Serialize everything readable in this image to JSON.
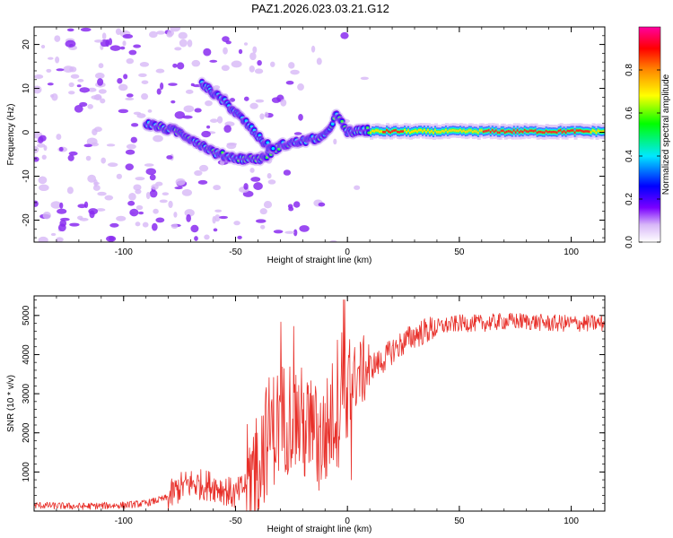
{
  "title": "PAZ1.2026.023.03.21.G12",
  "chart_data": [
    {
      "type": "heatmap",
      "xlabel": "Height of straight line (km)",
      "ylabel": "Frequency (Hz)",
      "xlim": [
        -140,
        115
      ],
      "ylim": [
        -25,
        24
      ],
      "xticks": [
        -100,
        -50,
        0,
        50,
        100
      ],
      "xtick_labels": [
        "-100",
        "-50",
        "0",
        "50",
        "100"
      ],
      "yticks": [
        -20,
        -10,
        0,
        10,
        20
      ],
      "ytick_labels": [
        "-20",
        "-10",
        "0",
        "10",
        "20"
      ],
      "colorbar": {
        "label": "Normalized spectral amplitude",
        "range": [
          0,
          1
        ],
        "ticks": [
          0.0,
          0.2,
          0.4,
          0.6,
          0.8
        ],
        "tick_labels": [
          "0.0",
          "0.2",
          "0.4",
          "0.6",
          "0.8"
        ],
        "colors": [
          "#ffffff",
          "#d8b8f8",
          "#7a00ff",
          "#0000ff",
          "#00e8ff",
          "#00ff00",
          "#ffff00",
          "#ff8800",
          "#ff0000",
          "#ff00a0"
        ]
      },
      "ridge": [
        {
          "x": -90,
          "y": 2
        },
        {
          "x": -75,
          "y": 0
        },
        {
          "x": -68,
          "y": -2
        },
        {
          "x": -58,
          "y": -5
        },
        {
          "x": -48,
          "y": -6
        },
        {
          "x": -38,
          "y": -6
        },
        {
          "x": -30,
          "y": -3
        },
        {
          "x": -20,
          "y": -2
        },
        {
          "x": -10,
          "y": -1
        },
        {
          "x": -5,
          "y": 4
        },
        {
          "x": 0,
          "y": 0
        },
        {
          "x": 10,
          "y": 0.5
        },
        {
          "x": 30,
          "y": 0
        },
        {
          "x": 60,
          "y": 0
        },
        {
          "x": 90,
          "y": 0
        },
        {
          "x": 115,
          "y": 0
        }
      ],
      "branch": [
        {
          "x": -65,
          "y": 11
        },
        {
          "x": -55,
          "y": 7
        },
        {
          "x": -45,
          "y": 2
        },
        {
          "x": -38,
          "y": -2
        },
        {
          "x": -33,
          "y": -4
        }
      ]
    },
    {
      "type": "line",
      "xlabel": "Height of straight line (km)",
      "ylabel": "SNR (10 * v/v)",
      "xlim": [
        -140,
        115
      ],
      "ylim": [
        0,
        5500
      ],
      "xticks": [
        -100,
        -50,
        0,
        50,
        100
      ],
      "xtick_labels": [
        "-100",
        "-50",
        "0",
        "50",
        "100"
      ],
      "yticks": [
        1000,
        2000,
        3000,
        4000,
        5000
      ],
      "ytick_labels": [
        "1000",
        "2000",
        "3000",
        "4000",
        "5000"
      ],
      "series": [
        {
          "name": "SNR",
          "color": "#e8302a",
          "x": [
            -140,
            -120,
            -100,
            -90,
            -80,
            -75,
            -70,
            -60,
            -55,
            -50,
            -45,
            -40,
            -35,
            -30,
            -25,
            -20,
            -15,
            -10,
            -5,
            -2,
            0,
            2,
            5,
            10,
            15,
            20,
            25,
            30,
            40,
            50,
            60,
            70,
            80,
            90,
            100,
            110,
            115
          ],
          "values": [
            150,
            120,
            150,
            200,
            350,
            600,
            700,
            650,
            550,
            400,
            700,
            1300,
            2000,
            2300,
            2500,
            2200,
            1800,
            1900,
            2700,
            3300,
            3000,
            3300,
            3500,
            3700,
            3800,
            4100,
            4300,
            4500,
            4700,
            4800,
            4800,
            4850,
            4850,
            4800,
            4800,
            4800,
            4800
          ]
        }
      ]
    }
  ]
}
